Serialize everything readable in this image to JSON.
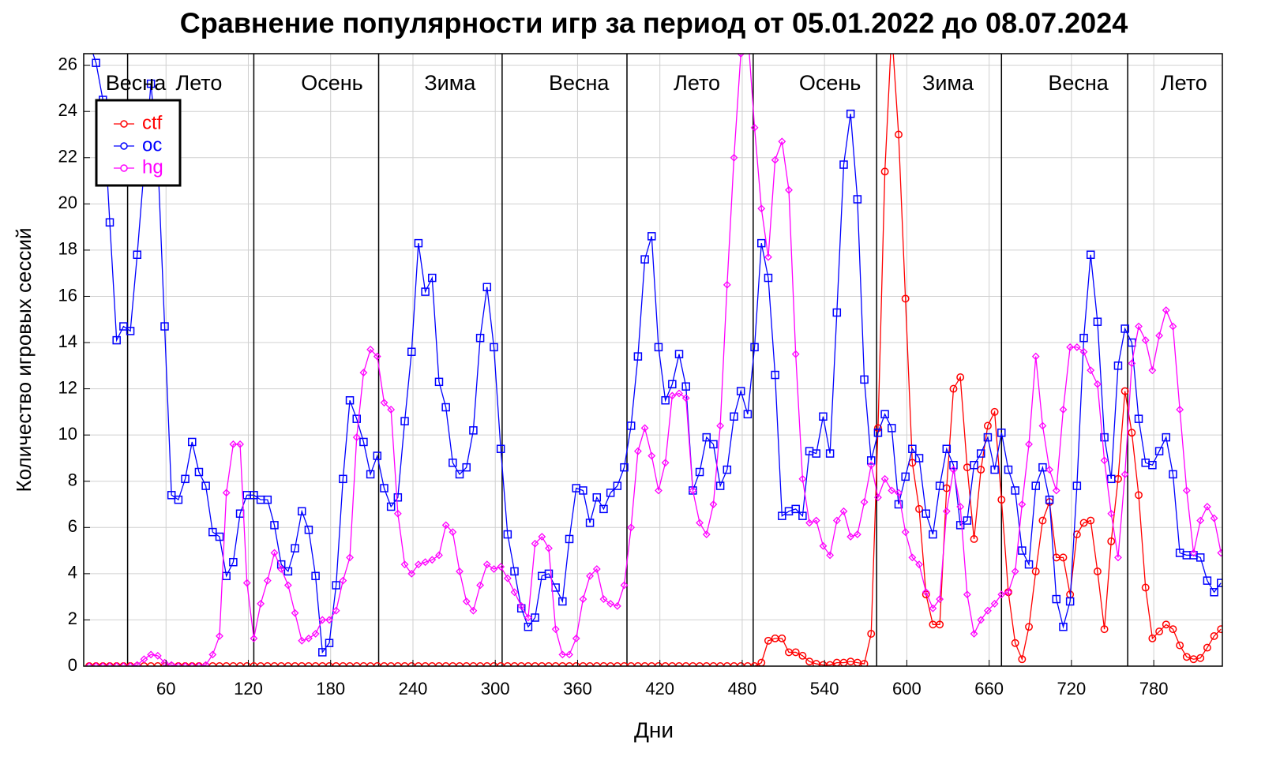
{
  "chart_data": {
    "type": "line",
    "title": "Сравнение популярности игр за период от 05.01.2022 до 08.07.2024",
    "xlabel": "Дни",
    "ylabel": "Количество игровых сессий",
    "xlim": [
      0,
      830
    ],
    "ylim": [
      0,
      26.5
    ],
    "xticks": [
      60,
      120,
      180,
      240,
      300,
      360,
      420,
      480,
      540,
      600,
      660,
      720,
      780
    ],
    "yticks": [
      0,
      2,
      4,
      6,
      8,
      10,
      12,
      14,
      16,
      18,
      20,
      22,
      24,
      26
    ],
    "grid": true,
    "legend": "upper left",
    "vlines": [
      32,
      124,
      215,
      305,
      396,
      488,
      578,
      669,
      761
    ],
    "annotations": [
      {
        "text": "Весна",
        "x": 38
      },
      {
        "text": "Лето",
        "x": 84
      },
      {
        "text": "Осень",
        "x": 181
      },
      {
        "text": "Зима",
        "x": 267
      },
      {
        "text": "Весна",
        "x": 361
      },
      {
        "text": "Лето",
        "x": 447
      },
      {
        "text": "Осень",
        "x": 544
      },
      {
        "text": "Зима",
        "x": 630
      },
      {
        "text": "Весна",
        "x": 725
      },
      {
        "text": "Лето",
        "x": 802
      }
    ],
    "x": [
      4,
      9,
      14,
      19,
      24,
      29,
      34,
      39,
      44,
      49,
      54,
      59,
      64,
      69,
      74,
      79,
      84,
      89,
      94,
      99,
      104,
      109,
      114,
      119,
      124,
      129,
      134,
      139,
      144,
      149,
      154,
      159,
      164,
      169,
      174,
      179,
      184,
      189,
      194,
      199,
      204,
      209,
      214,
      219,
      224,
      229,
      234,
      239,
      244,
      249,
      254,
      259,
      264,
      269,
      274,
      279,
      284,
      289,
      294,
      299,
      304,
      309,
      314,
      319,
      324,
      329,
      334,
      339,
      344,
      349,
      354,
      359,
      364,
      369,
      374,
      379,
      384,
      389,
      394,
      399,
      404,
      409,
      414,
      419,
      424,
      429,
      434,
      439,
      444,
      449,
      454,
      459,
      464,
      469,
      474,
      479,
      484,
      489,
      494,
      499,
      504,
      509,
      514,
      519,
      524,
      529,
      534,
      539,
      544,
      549,
      554,
      559,
      564,
      569,
      574,
      579,
      584,
      589,
      594,
      599,
      604,
      609,
      614,
      619,
      624,
      629,
      634,
      639,
      644,
      649,
      654,
      659,
      664,
      669,
      674,
      679,
      684,
      689,
      694,
      699,
      704,
      709,
      714,
      719,
      724,
      729,
      734,
      739,
      744,
      749,
      754,
      759,
      764,
      769,
      774,
      779,
      784,
      789,
      794,
      799,
      804,
      809,
      814,
      819,
      824,
      829
    ],
    "series": [
      {
        "name": "ctf",
        "color": "#ff0000",
        "marker": "circle",
        "values": [
          0,
          0,
          0,
          0,
          0,
          0,
          0,
          0,
          0,
          0,
          0,
          0,
          0,
          0,
          0,
          0,
          0,
          0,
          0,
          0,
          0,
          0,
          0,
          0,
          0,
          0,
          0,
          0,
          0,
          0,
          0,
          0,
          0,
          0,
          0,
          0,
          0,
          0,
          0,
          0,
          0,
          0,
          0,
          0,
          0,
          0,
          0,
          0,
          0,
          0,
          0,
          0,
          0,
          0,
          0,
          0,
          0,
          0,
          0,
          0,
          0,
          0,
          0,
          0,
          0,
          0,
          0,
          0,
          0,
          0,
          0,
          0,
          0,
          0,
          0,
          0,
          0,
          0,
          0,
          0,
          0,
          0,
          0,
          0,
          0,
          0,
          0,
          0,
          0,
          0,
          0,
          0,
          0,
          0,
          0,
          0,
          0,
          0,
          0.15,
          1.1,
          1.2,
          1.2,
          0.6,
          0.6,
          0.45,
          0.2,
          0.1,
          0.05,
          0.05,
          0.15,
          0.15,
          0.2,
          0.15,
          0.1,
          1.4,
          10.3,
          21.4,
          27.5,
          23.0,
          15.9,
          8.8,
          6.8,
          3.1,
          1.8,
          1.8,
          7.7,
          12.0,
          12.5,
          8.6,
          5.5,
          8.5,
          10.4,
          11.0,
          7.2,
          3.2,
          1.0,
          0.3,
          1.7,
          4.1,
          6.3,
          7.1,
          4.7,
          4.7,
          3.1,
          5.7,
          6.2,
          6.3,
          4.1,
          1.6,
          5.4,
          8.1,
          11.9,
          10.1,
          7.4,
          3.4,
          1.2,
          1.5,
          1.8,
          1.6,
          0.9,
          0.4,
          0.3,
          0.35,
          0.8,
          1.3,
          1.6
        ]
      },
      {
        "name": "oc",
        "color": "#0000ff",
        "marker": "square",
        "values": [
          27,
          26.1,
          24.5,
          19.2,
          14.1,
          14.7,
          14.5,
          17.8,
          21.5,
          25.2,
          22,
          14.7,
          7.4,
          7.2,
          8.1,
          9.7,
          8.4,
          7.8,
          5.8,
          5.6,
          3.9,
          4.5,
          6.6,
          7.4,
          7.4,
          7.2,
          7.2,
          6.1,
          4.4,
          4.1,
          5.1,
          6.7,
          5.9,
          3.9,
          0.6,
          1.0,
          3.5,
          8.1,
          11.5,
          10.7,
          9.7,
          8.3,
          9.1,
          7.7,
          6.9,
          7.3,
          10.6,
          13.6,
          18.3,
          16.2,
          16.8,
          12.3,
          11.2,
          8.8,
          8.3,
          8.6,
          10.2,
          14.2,
          16.4,
          13.8,
          9.4,
          5.7,
          4.1,
          2.5,
          1.7,
          2.1,
          3.9,
          4.0,
          3.4,
          2.8,
          5.5,
          7.7,
          7.6,
          6.2,
          7.3,
          6.8,
          7.5,
          7.8,
          8.6,
          10.4,
          13.4,
          17.6,
          18.6,
          13.8,
          11.5,
          12.2,
          13.5,
          12.1,
          7.6,
          8.4,
          9.9,
          9.6,
          7.8,
          8.5,
          10.8,
          11.9,
          10.9,
          13.8,
          18.3,
          16.8,
          12.6,
          6.5,
          6.7,
          6.8,
          6.5,
          9.3,
          9.2,
          10.8,
          9.2,
          15.3,
          21.7,
          23.9,
          20.2,
          12.4,
          8.9,
          10.1,
          10.9,
          10.3,
          7.0,
          8.2,
          9.4,
          9.0,
          6.6,
          5.7,
          7.8,
          9.4,
          8.7,
          6.1,
          6.3,
          8.7,
          9.2,
          9.9,
          8.5,
          10.1,
          8.5,
          7.6,
          5.0,
          4.4,
          7.8,
          8.6,
          7.2,
          2.9,
          1.7,
          2.8,
          7.8,
          14.2,
          17.8,
          14.9,
          9.9,
          8.1,
          13.0,
          14.6,
          14.0,
          10.7,
          8.8,
          8.7,
          9.3,
          9.9,
          8.3,
          4.9,
          4.8,
          4.8,
          4.7,
          3.7,
          3.2,
          3.6
        ]
      },
      {
        "name": "hg",
        "color": "#ff00ff",
        "marker": "diamond",
        "values": [
          0,
          0,
          0,
          0,
          0,
          0,
          0,
          0.05,
          0.3,
          0.5,
          0.45,
          0.15,
          0.05,
          0,
          0,
          0,
          0,
          0.05,
          0.5,
          1.3,
          7.5,
          9.6,
          9.6,
          3.6,
          1.2,
          2.7,
          3.7,
          4.9,
          4.2,
          3.5,
          2.3,
          1.1,
          1.2,
          1.4,
          2.0,
          2.0,
          2.4,
          3.7,
          4.7,
          9.9,
          12.7,
          13.7,
          13.4,
          11.4,
          11.1,
          6.6,
          4.4,
          4.0,
          4.4,
          4.5,
          4.6,
          4.8,
          6.1,
          5.8,
          4.1,
          2.8,
          2.4,
          3.5,
          4.4,
          4.2,
          4.3,
          3.8,
          3.2,
          2.6,
          2.1,
          5.3,
          5.6,
          5.1,
          1.6,
          0.5,
          0.5,
          1.2,
          2.9,
          3.9,
          4.2,
          2.9,
          2.7,
          2.6,
          3.5,
          6.0,
          9.3,
          10.3,
          9.1,
          7.6,
          8.8,
          11.7,
          11.8,
          11.6,
          7.6,
          6.2,
          5.7,
          7.0,
          10.4,
          16.5,
          22.0,
          26.5,
          27.5,
          23.3,
          19.8,
          17.7,
          21.9,
          22.7,
          20.6,
          13.5,
          8.1,
          6.2,
          6.3,
          5.2,
          4.8,
          6.3,
          6.7,
          5.6,
          5.7,
          7.1,
          8.7,
          7.3,
          8.1,
          7.6,
          7.5,
          5.8,
          4.7,
          4.4,
          3.2,
          2.5,
          2.9,
          6.7,
          8.5,
          6.9,
          3.1,
          1.4,
          2.0,
          2.4,
          2.7,
          3.1,
          3.2,
          4.1,
          7.0,
          9.6,
          13.4,
          10.4,
          8.5,
          7.6,
          11.1,
          13.8,
          13.8,
          13.6,
          12.8,
          12.2,
          8.9,
          6.6,
          4.7,
          8.3,
          13.1,
          14.7,
          14.1,
          12.8,
          14.3,
          15.4,
          14.7,
          11.1,
          7.6,
          4.9,
          6.3,
          6.9,
          6.4,
          4.9
        ]
      }
    ]
  }
}
